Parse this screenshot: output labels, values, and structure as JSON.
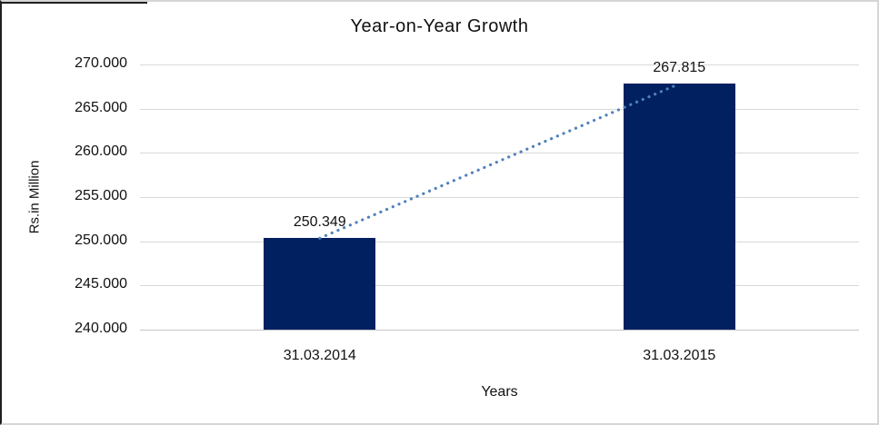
{
  "chart_data": {
    "type": "bar",
    "title": "Year-on-Year Growth",
    "xlabel": "Years",
    "ylabel": "Rs.in Million",
    "categories": [
      "31.03.2014",
      "31.03.2015"
    ],
    "values": [
      250349,
      267815
    ],
    "value_labels": [
      "250.349",
      "267.815"
    ],
    "ylim": [
      240000,
      270000
    ],
    "ytick_step": 5000,
    "ytick_labels": [
      "240.000",
      "245.000",
      "250.000",
      "255.000",
      "260.000",
      "265.000",
      "270.000"
    ],
    "grid": "horizontal-only",
    "legend": false,
    "trendline": {
      "type": "linear",
      "style": "dotted"
    },
    "colors": {
      "bar": "#002060",
      "trendline": "#4f81bd",
      "gridline": "#d9d9d9",
      "axis_line": "#c6c6c6",
      "text": "#111111"
    }
  }
}
